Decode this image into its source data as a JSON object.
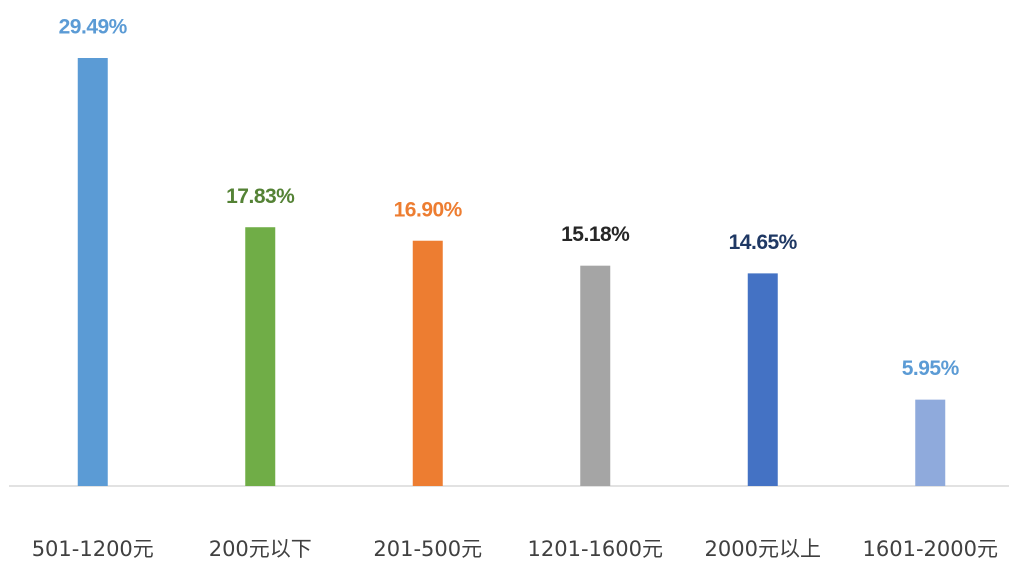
{
  "chart_data": {
    "type": "bar",
    "categories": [
      "501-1200元",
      "200元以下",
      "201-500元",
      "1201-1600元",
      "2000元以上",
      "1601-2000元"
    ],
    "values": [
      29.49,
      17.83,
      16.9,
      15.18,
      14.65,
      5.95
    ],
    "value_labels": [
      "29.49%",
      "17.83%",
      "16.90%",
      "15.18%",
      "14.65%",
      "5.95%"
    ],
    "colors": [
      "#5b9bd5",
      "#70ad47",
      "#ed7d31",
      "#a5a5a5",
      "#4472c4",
      "#8faadc"
    ],
    "label_colors": [
      "#5b9bd5",
      "#548235",
      "#ed7d31",
      "#262626",
      "#1f3864",
      "#5b9bd5"
    ]
  }
}
